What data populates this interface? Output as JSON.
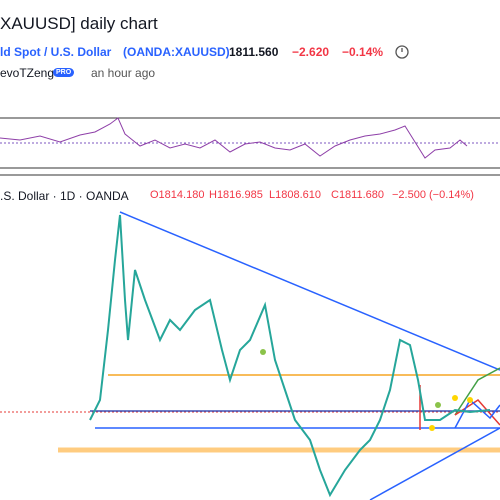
{
  "header": {
    "title": "XAUUSD] daily chart",
    "symbol_name": "ld Spot / U.S. Dollar",
    "symbol_code": "(OANDA:XAUUSD)",
    "price": "1811.560",
    "change": "−2.620",
    "change_pct": "−0.14%",
    "author": "evoTZeng",
    "badge": "PRO",
    "time": "an hour ago"
  },
  "legend": {
    "symbol": ".S. Dollar · 1D · OANDA",
    "open": "O1814.180",
    "high": "H1816.985",
    "low": "L1808.610",
    "close": "C1811.680",
    "change": "−2.500 (−0.14%)"
  }
}
